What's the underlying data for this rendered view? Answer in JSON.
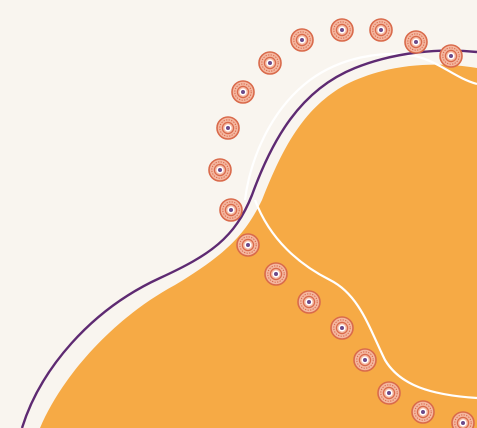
{
  "artwork": {
    "description_icons": [
      "dot-circle-icon"
    ],
    "colors": {
      "background": "#F9F5EF",
      "blob": "#F6AA45",
      "purple_line": "#5E2A72",
      "white_line": "#FFFFFF",
      "dot_ring": "#D96A4B",
      "dot_fill": "#F4B7A0",
      "dot_center": "#FFFFFF",
      "dot_core": "#6B4A8A"
    }
  }
}
